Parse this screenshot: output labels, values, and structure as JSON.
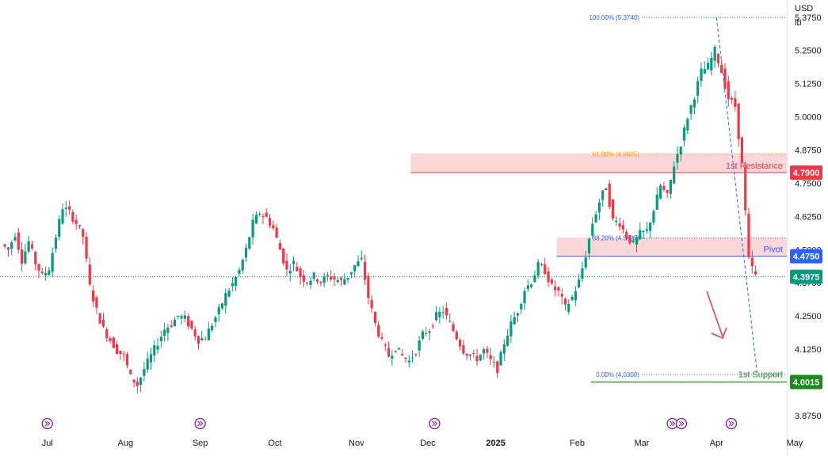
{
  "chart_data": {
    "type": "candlestick",
    "instrument_unit": "USD",
    "instrument_unit_sub": "lb",
    "y_ticks": [
      "5.3750",
      "5.2500",
      "5.1250",
      "5.0000",
      "4.8750",
      "4.7500",
      "4.6250",
      "4.5000",
      "4.3750",
      "4.2500",
      "4.1250",
      "3.8750"
    ],
    "y_range": [
      3.83,
      5.44
    ],
    "x_labels": [
      "Jul",
      "Aug",
      "Sep",
      "Oct",
      "Nov",
      "Dec",
      "2025",
      "Feb",
      "Mar",
      "Apr",
      "May"
    ],
    "x_range": [
      0,
      230
    ],
    "x_label_positions": [
      13,
      36,
      58,
      80,
      104,
      125,
      145,
      169,
      188,
      210,
      233
    ],
    "price_tags": {
      "resistance": {
        "value": "4.7900",
        "color": "#f23645"
      },
      "pivot": {
        "value": "4.4750",
        "color": "#2962ff"
      },
      "current": {
        "value": "4.3975",
        "color": "#089981"
      },
      "support": {
        "value": "4.0015",
        "color": "#1e8a1e"
      }
    },
    "zones": {
      "resistance_label": "1st Resistance",
      "pivot_label": "Pivot",
      "support_label": "1st Support",
      "resistance_zone": [
        4.79,
        4.862
      ],
      "pivot_zone": [
        4.475,
        4.545
      ]
    },
    "levels": {
      "resistance": 4.79,
      "pivot": 4.475,
      "support": 4.0015,
      "current": 4.3975
    },
    "fibonacci": [
      {
        "label": "100.00% (5.3740)",
        "value": 5.374,
        "color": "#2962ff"
      },
      {
        "label": "61.80% (4.8605)",
        "value": 4.8605,
        "color": "#ff9800"
      },
      {
        "label": "38.20% (4.5435)",
        "value": 4.5435,
        "color": "#2962ff"
      },
      {
        "label": "0.00% (4.0300)",
        "value": 4.03,
        "color": "#2962ff"
      }
    ],
    "series": [
      {
        "points": [
          [
            0,
            4.52
          ],
          [
            2,
            4.5
          ],
          [
            4,
            4.56
          ],
          [
            6,
            4.46
          ],
          [
            8,
            4.53
          ],
          [
            10,
            4.45
          ],
          [
            12,
            4.4
          ],
          [
            14,
            4.43
          ],
          [
            16,
            4.55
          ],
          [
            18,
            4.66
          ],
          [
            20,
            4.64
          ],
          [
            22,
            4.6
          ],
          [
            24,
            4.55
          ],
          [
            26,
            4.36
          ],
          [
            28,
            4.27
          ],
          [
            30,
            4.2
          ],
          [
            32,
            4.16
          ],
          [
            34,
            4.12
          ],
          [
            36,
            4.1
          ],
          [
            38,
            4.02
          ],
          [
            40,
            3.99
          ],
          [
            42,
            4.05
          ],
          [
            44,
            4.1
          ],
          [
            46,
            4.15
          ],
          [
            48,
            4.2
          ],
          [
            50,
            4.22
          ],
          [
            52,
            4.25
          ],
          [
            54,
            4.24
          ],
          [
            56,
            4.2
          ],
          [
            58,
            4.16
          ],
          [
            60,
            4.17
          ],
          [
            62,
            4.22
          ],
          [
            64,
            4.27
          ],
          [
            66,
            4.33
          ],
          [
            68,
            4.37
          ],
          [
            70,
            4.42
          ],
          [
            72,
            4.5
          ],
          [
            74,
            4.6
          ],
          [
            76,
            4.64
          ],
          [
            78,
            4.62
          ],
          [
            80,
            4.58
          ],
          [
            82,
            4.5
          ],
          [
            84,
            4.42
          ],
          [
            86,
            4.45
          ],
          [
            88,
            4.4
          ],
          [
            90,
            4.38
          ],
          [
            92,
            4.4
          ],
          [
            94,
            4.38
          ],
          [
            96,
            4.4
          ],
          [
            98,
            4.39
          ],
          [
            100,
            4.38
          ],
          [
            102,
            4.4
          ],
          [
            104,
            4.44
          ],
          [
            106,
            4.46
          ],
          [
            108,
            4.32
          ],
          [
            110,
            4.22
          ],
          [
            112,
            4.15
          ],
          [
            114,
            4.1
          ],
          [
            116,
            4.13
          ],
          [
            118,
            4.1
          ],
          [
            120,
            4.08
          ],
          [
            122,
            4.12
          ],
          [
            124,
            4.18
          ],
          [
            126,
            4.2
          ],
          [
            128,
            4.25
          ],
          [
            130,
            4.27
          ],
          [
            132,
            4.22
          ],
          [
            134,
            4.17
          ],
          [
            136,
            4.12
          ],
          [
            138,
            4.1
          ],
          [
            140,
            4.09
          ],
          [
            142,
            4.12
          ],
          [
            144,
            4.08
          ],
          [
            146,
            4.05
          ],
          [
            148,
            4.15
          ],
          [
            150,
            4.22
          ],
          [
            152,
            4.27
          ],
          [
            154,
            4.35
          ],
          [
            156,
            4.38
          ],
          [
            158,
            4.44
          ],
          [
            160,
            4.42
          ],
          [
            162,
            4.36
          ],
          [
            164,
            4.34
          ],
          [
            166,
            4.28
          ],
          [
            168,
            4.32
          ],
          [
            170,
            4.38
          ],
          [
            172,
            4.48
          ],
          [
            174,
            4.6
          ],
          [
            176,
            4.68
          ],
          [
            178,
            4.74
          ],
          [
            180,
            4.61
          ],
          [
            182,
            4.6
          ],
          [
            184,
            4.55
          ],
          [
            186,
            4.52
          ],
          [
            188,
            4.56
          ],
          [
            190,
            4.57
          ],
          [
            192,
            4.65
          ],
          [
            194,
            4.74
          ],
          [
            196,
            4.7
          ],
          [
            198,
            4.82
          ],
          [
            200,
            4.9
          ],
          [
            202,
            5.0
          ],
          [
            204,
            5.08
          ],
          [
            206,
            5.17
          ],
          [
            208,
            5.19
          ],
          [
            210,
            5.25
          ],
          [
            212,
            5.17
          ],
          [
            214,
            5.07
          ],
          [
            216,
            5.04
          ],
          [
            218,
            4.82
          ],
          [
            220,
            4.46
          ],
          [
            222,
            4.4
          ]
        ]
      }
    ]
  }
}
